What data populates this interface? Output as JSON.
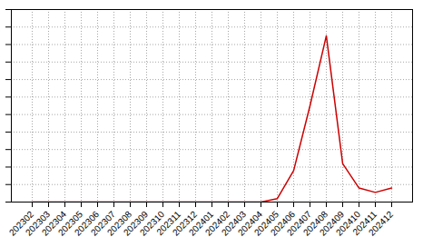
{
  "chart_data": {
    "type": "line",
    "categories": [
      "202302",
      "202303",
      "202304",
      "202305",
      "202306",
      "202307",
      "202308",
      "202309",
      "202310",
      "202311",
      "202312",
      "202401",
      "202402",
      "202403",
      "202404",
      "202405",
      "202406",
      "202407",
      "202408",
      "202409",
      "202410",
      "202411",
      "202412"
    ],
    "values": [
      0.0,
      0.0,
      0.0,
      0.0,
      0.0,
      0.0,
      0.0,
      0.0,
      0.0,
      0.0,
      0.0,
      0.0,
      0.0,
      0.0,
      0.0,
      2.0,
      18.0,
      55.0,
      95.0,
      22.0,
      8.0,
      5.5,
      8.0
    ],
    "color": "#cc0000",
    "ylim": [
      0,
      110
    ],
    "yticks": [
      0,
      10,
      20,
      30,
      40,
      50,
      60,
      70,
      80,
      90,
      100,
      110
    ],
    "grid": true,
    "tick_labels": "x"
  }
}
